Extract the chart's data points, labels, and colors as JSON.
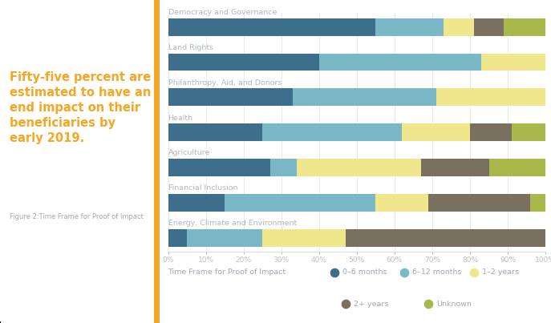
{
  "categories": [
    "Democracy and Governance",
    "Land Rights",
    "Philanthropy, Aid, and Donors",
    "Health",
    "Agriculture",
    "Financial Inclusion",
    "Energy, Climate and Environment"
  ],
  "series": {
    "0-6 months": [
      55,
      40,
      33,
      25,
      27,
      15,
      5
    ],
    "6-12 months": [
      18,
      43,
      38,
      37,
      7,
      40,
      20
    ],
    "1-2 years": [
      8,
      17,
      29,
      18,
      33,
      14,
      22
    ],
    "2+ years": [
      8,
      0,
      0,
      11,
      18,
      27,
      53
    ],
    "Unknown": [
      11,
      0,
      0,
      9,
      15,
      4,
      0
    ]
  },
  "colors": {
    "0-6 months": "#3d6e8c",
    "6-12 months": "#7ab8c8",
    "1-2 years": "#f0e68c",
    "2+ years": "#7a7060",
    "Unknown": "#a8b84b"
  },
  "left_title": "Fifty-five percent are\nestimated to have an\nend impact on their\nbeneficiaries by\nearly 2019.",
  "left_subtitle": "Figure 2:Time Frame for Proof of Impact",
  "left_title_color": "#f5a623",
  "left_subtitle_color": "#a0a8b0",
  "category_label_color": "#b0b8c0",
  "legend_label": "Time Frame for Proof of Impact",
  "legend_label_color": "#a0a8b0",
  "accent_line_color": "#f5a623",
  "background_color": "#ffffff",
  "bar_height": 0.5,
  "xlim": [
    0,
    100
  ],
  "series_order": [
    "0-6 months",
    "6-12 months",
    "1-2 years",
    "2+ years",
    "Unknown"
  ],
  "legend_row1": [
    "0–6 months",
    "6–12 months",
    "1–2 years"
  ],
  "legend_row2": [
    "2+ years",
    "Unknown"
  ]
}
